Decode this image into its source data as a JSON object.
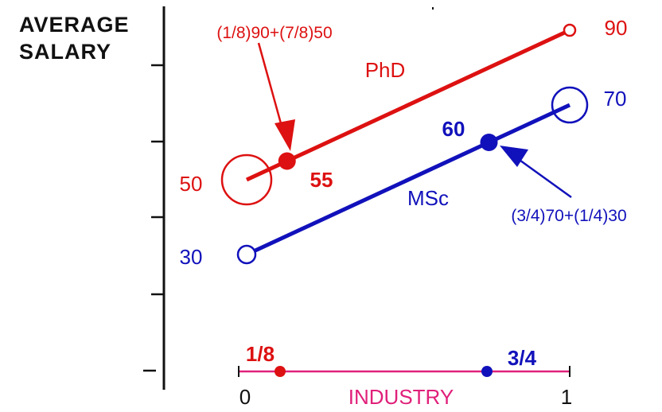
{
  "colors": {
    "phd": "#dd1111",
    "msc": "#1111bb",
    "industry": "#e0207a",
    "axis": "#111111"
  },
  "y_axis": {
    "label_line1": "AVERAGE",
    "label_line2": "SALARY"
  },
  "x_axis": {
    "label": "INDUSTRY",
    "tick_start": "0",
    "tick_end": "1"
  },
  "lines": {
    "phd": {
      "name": "PhD",
      "start_value": 50,
      "end_value": 90,
      "start_label": "50",
      "end_label": "90",
      "mix_fraction": 0.125,
      "mix_value": 55,
      "mix_label": "55",
      "formula": "(1/8)90+(7/8)50"
    },
    "msc": {
      "name": "MSc",
      "start_value": 30,
      "end_value": 70,
      "start_label": "30",
      "end_label": "70",
      "mix_fraction": 0.75,
      "mix_value": 60,
      "mix_label": "60",
      "formula": "(3/4)70+(1/4)30"
    }
  },
  "industry_scale": {
    "phd_fraction": 0.125,
    "phd_fraction_label": "1/8",
    "msc_fraction": 0.75,
    "msc_fraction_label": "3/4"
  }
}
